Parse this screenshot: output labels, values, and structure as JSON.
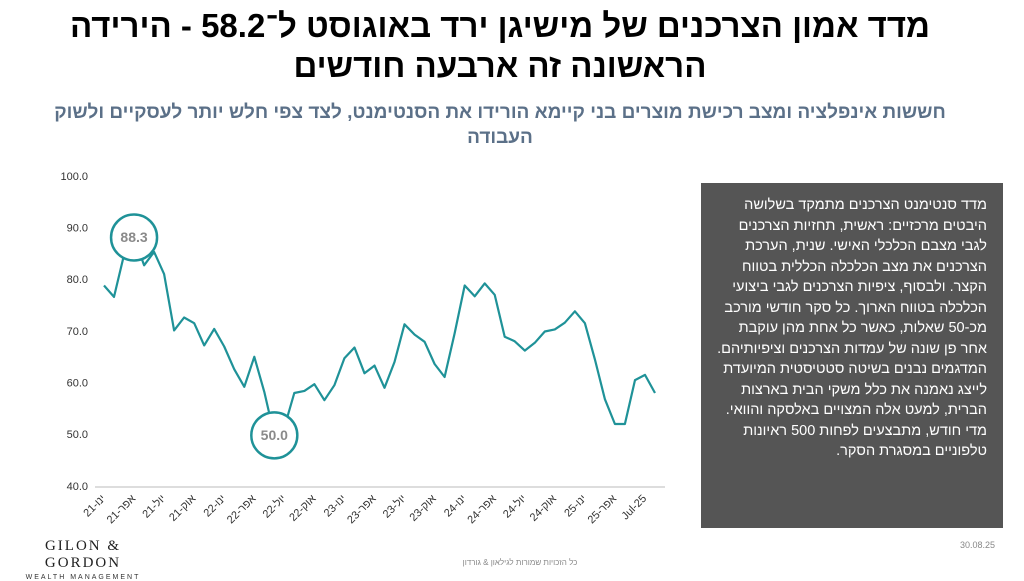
{
  "header": {
    "title": "מדד אמון הצרכנים של מישיגן ירד באוגוסט ל־58.2 - הירידה הראשונה זה ארבעה חודשים",
    "subtitle": "חששות אינפלציה ומצב רכישת מוצרים בני קיימא הורידו את הסנטימנט, לצד צפי חלש יותר לעסקיים ולשוק העבודה"
  },
  "chart_data": {
    "type": "line",
    "color": "#1f9298",
    "grid": false,
    "categories": [
      "ינו-21",
      null,
      null,
      "אפר-21",
      null,
      null,
      "יול-21",
      null,
      null,
      "אוק-21",
      null,
      null,
      "ינו-22",
      null,
      null,
      "אפר-22",
      null,
      null,
      "יול-22",
      null,
      null,
      "אוק-22",
      null,
      null,
      "ינו-23",
      null,
      null,
      "אפר-23",
      null,
      null,
      "יול-23",
      null,
      null,
      "אוק-23",
      null,
      null,
      "ינו-24",
      null,
      null,
      "אפר-24",
      null,
      null,
      "יול-24",
      null,
      null,
      "אוק-24",
      null,
      null,
      "ינו-25",
      null,
      null,
      "אפר-25",
      null,
      null,
      "Jul-25",
      null
    ],
    "values": [
      79.0,
      76.8,
      84.9,
      88.3,
      82.9,
      85.5,
      81.2,
      70.3,
      72.8,
      71.7,
      67.4,
      70.6,
      67.2,
      62.8,
      59.4,
      65.2,
      58.4,
      50.0,
      51.5,
      58.2,
      58.6,
      59.9,
      56.8,
      59.7,
      64.9,
      67.0,
      62.0,
      63.5,
      59.2,
      64.2,
      71.5,
      69.5,
      68.1,
      63.8,
      61.3,
      69.7,
      79.0,
      76.9,
      79.4,
      77.2,
      69.1,
      68.2,
      66.4,
      67.9,
      70.1,
      70.5,
      71.8,
      74.0,
      71.7,
      64.7,
      57.0,
      52.2,
      52.2,
      60.7,
      61.7,
      58.2
    ],
    "ylim": [
      40,
      100
    ],
    "yticks": [
      {
        "value": 40,
        "label": "40.0"
      },
      {
        "value": 50,
        "label": "50.0"
      },
      {
        "value": 60,
        "label": "60.0"
      },
      {
        "value": 70,
        "label": "70.0"
      },
      {
        "value": 80,
        "label": "80.0"
      },
      {
        "value": 90,
        "label": "90.0"
      },
      {
        "value": 100,
        "label": "100.0"
      }
    ],
    "annotations": [
      {
        "label": "88.3",
        "value": 88.3
      },
      {
        "label": "50.0",
        "value": 50.0
      }
    ]
  },
  "note": "מדד סנטימנט הצרכנים מתמקד בשלושה היבטים מרכזיים: ראשית, תחזיות הצרכנים לגבי מצבם הכלכלי האישי. שנית, הערכת הצרכנים את מצב הכלכלה הכללית בטווח הקצר. ולבסוף, ציפיות הצרכנים לגבי ביצועי הכלכלה בטווח הארוך. כל סקר חודשי מורכב מכ-50 שאלות, כאשר כל אחת מהן עוקבת אחר פן שונה של עמדות הצרכנים וציפיותיהם. המדגמים נבנים בשיטה סטטיסטית המיועדת לייצג נאמנה את כלל משקי הבית בארצות הברית, למעט אלה המצויים באלסקה והוואי. מדי חודש, מתבצעים לפחות 500 ראיונות טלפוניים במסגרת הסקר.",
  "logo": {
    "name": "GILON & GORDON",
    "tagline": "WEALTH MANAGEMENT"
  },
  "footer": {
    "copyright": "כל הזכויות שמורות לגילאון & גורדון",
    "date": "30.08.25"
  }
}
